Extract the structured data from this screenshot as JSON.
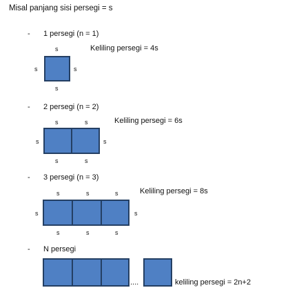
{
  "intro": "Misal panjang sisi persegi = s",
  "bullet": "-",
  "side_label": "s",
  "sections": [
    {
      "title": "1 persegi (n = 1)",
      "formula": "Keliling persegi = 4s"
    },
    {
      "title": "2 persegi (n = 2)",
      "formula": "Keliling persegi = 6s"
    },
    {
      "title": "3 persegi (n = 3)",
      "formula": "Keliling persegi = 8s"
    },
    {
      "title": "N persegi",
      "formula": "keliling persegi = 2n+2"
    }
  ],
  "ellipsis": "....",
  "colors": {
    "square_fill": "#4f80c4",
    "square_border": "#243f63"
  }
}
